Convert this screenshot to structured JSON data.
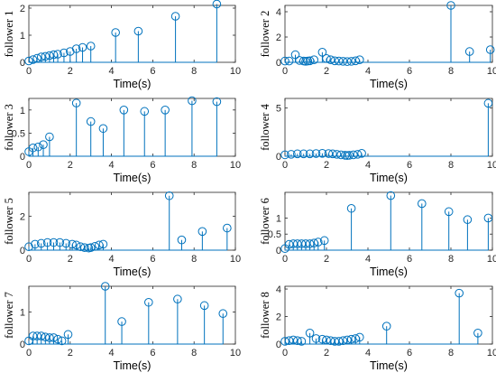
{
  "chart_data": [
    {
      "type": "stem",
      "ylabel": "follower 1",
      "xlabel": "Time(s)",
      "xlim": [
        0,
        10
      ],
      "xticks": [
        0,
        2,
        4,
        6,
        8,
        10
      ],
      "ylim": [
        0,
        2.1
      ],
      "yticks": [
        0,
        1,
        2
      ],
      "x": [
        0,
        0.2,
        0.4,
        0.6,
        0.8,
        1.0,
        1.2,
        1.4,
        1.7,
        2.0,
        2.3,
        2.6,
        3.0,
        4.2,
        5.3,
        7.1,
        9.1
      ],
      "y": [
        0.05,
        0.1,
        0.15,
        0.2,
        0.22,
        0.25,
        0.28,
        0.3,
        0.35,
        0.4,
        0.5,
        0.55,
        0.6,
        1.1,
        1.15,
        1.7,
        2.15
      ]
    },
    {
      "type": "stem",
      "ylabel": "follower 2",
      "xlabel": "Time(s)",
      "xlim": [
        0,
        10
      ],
      "xticks": [
        0,
        2,
        4,
        6,
        8,
        10
      ],
      "ylim": [
        0,
        4.5
      ],
      "yticks": [
        0,
        2,
        4
      ],
      "x": [
        0,
        0.2,
        0.5,
        0.7,
        0.9,
        1.0,
        1.1,
        1.2,
        1.4,
        1.8,
        2.0,
        2.2,
        2.4,
        2.6,
        2.8,
        3.0,
        3.2,
        3.4,
        3.6,
        8.0,
        8.9,
        9.9
      ],
      "y": [
        0.1,
        0.1,
        0.6,
        0.15,
        0.1,
        0.08,
        0.1,
        0.12,
        0.2,
        0.8,
        0.3,
        0.2,
        0.12,
        0.1,
        0.08,
        0.06,
        0.08,
        0.12,
        0.2,
        4.5,
        0.85,
        1.0
      ]
    },
    {
      "type": "stem",
      "ylabel": "follower 3",
      "xlabel": "Time(s)",
      "xlim": [
        0,
        10
      ],
      "xticks": [
        0,
        2,
        4,
        6,
        8,
        10
      ],
      "ylim": [
        0,
        1.25
      ],
      "yticks": [
        0,
        0.5,
        1
      ],
      "x": [
        0,
        0.2,
        0.45,
        0.7,
        1.0,
        2.3,
        3.0,
        3.6,
        4.6,
        5.6,
        6.6,
        7.9,
        9.1
      ],
      "y": [
        0.1,
        0.18,
        0.2,
        0.25,
        0.42,
        1.15,
        0.75,
        0.6,
        1.0,
        0.97,
        1.0,
        1.2,
        1.18
      ]
    },
    {
      "type": "stem",
      "ylabel": "follower 4",
      "xlabel": "Time(s)",
      "xlim": [
        0,
        10
      ],
      "xticks": [
        0,
        2,
        4,
        6,
        8,
        10
      ],
      "ylim": [
        0,
        6
      ],
      "yticks": [
        0,
        5
      ],
      "x": [
        0,
        0.3,
        0.6,
        0.9,
        1.2,
        1.5,
        1.8,
        2.1,
        2.3,
        2.5,
        2.7,
        2.9,
        3.0,
        3.1,
        3.3,
        3.5,
        3.7,
        9.8
      ],
      "y": [
        0.15,
        0.2,
        0.25,
        0.25,
        0.25,
        0.28,
        0.3,
        0.28,
        0.25,
        0.2,
        0.15,
        0.1,
        0.08,
        0.1,
        0.15,
        0.2,
        0.3,
        5.5
      ]
    },
    {
      "type": "stem",
      "ylabel": "follower 5",
      "xlabel": "Time(s)",
      "xlim": [
        0,
        10
      ],
      "xticks": [
        0,
        2,
        4,
        6,
        8,
        10
      ],
      "ylim": [
        0,
        3.4
      ],
      "yticks": [
        0,
        2
      ],
      "x": [
        0,
        0.3,
        0.6,
        0.9,
        1.2,
        1.5,
        1.8,
        2.1,
        2.3,
        2.5,
        2.7,
        2.9,
        3.0,
        3.2,
        3.4,
        3.6,
        6.8,
        7.4,
        8.4,
        9.6
      ],
      "y": [
        0.2,
        0.35,
        0.4,
        0.45,
        0.45,
        0.45,
        0.4,
        0.35,
        0.3,
        0.2,
        0.15,
        0.12,
        0.15,
        0.22,
        0.3,
        0.35,
        3.2,
        0.6,
        1.1,
        1.3
      ]
    },
    {
      "type": "stem",
      "ylabel": "follower 6",
      "xlabel": "Time(s)",
      "xlim": [
        0,
        10
      ],
      "xticks": [
        0,
        2,
        4,
        6,
        8,
        10
      ],
      "ylim": [
        0,
        1.8
      ],
      "yticks": [
        0,
        0.5,
        1
      ],
      "x": [
        0,
        0.2,
        0.4,
        0.6,
        0.8,
        1.0,
        1.2,
        1.4,
        1.6,
        1.9,
        3.2,
        5.1,
        6.6,
        7.9,
        8.8,
        9.8
      ],
      "y": [
        0.05,
        0.18,
        0.2,
        0.2,
        0.2,
        0.2,
        0.2,
        0.22,
        0.25,
        0.3,
        1.3,
        1.7,
        1.45,
        1.2,
        0.95,
        1.0
      ]
    },
    {
      "type": "stem",
      "ylabel": "follower 7",
      "xlabel": "Time(s)",
      "xlim": [
        0,
        10
      ],
      "xticks": [
        0,
        2,
        4,
        6,
        8,
        10
      ],
      "ylim": [
        0,
        1.8
      ],
      "yticks": [
        0,
        1
      ],
      "x": [
        0,
        0.2,
        0.4,
        0.6,
        0.8,
        1.0,
        1.2,
        1.4,
        1.6,
        1.9,
        3.7,
        4.5,
        5.8,
        7.2,
        8.5,
        9.4
      ],
      "y": [
        0.1,
        0.25,
        0.25,
        0.25,
        0.22,
        0.2,
        0.2,
        0.15,
        0.1,
        0.3,
        1.8,
        0.7,
        1.3,
        1.4,
        1.2,
        0.95
      ]
    },
    {
      "type": "stem",
      "ylabel": "follower 8",
      "xlabel": "Time(s)",
      "xlim": [
        0,
        10
      ],
      "xticks": [
        0,
        2,
        4,
        6,
        8,
        10
      ],
      "ylim": [
        0,
        4.2
      ],
      "yticks": [
        0,
        2,
        4
      ],
      "x": [
        0,
        0.2,
        0.4,
        0.6,
        0.8,
        1.2,
        1.5,
        1.8,
        2.0,
        2.2,
        2.4,
        2.6,
        2.8,
        3.0,
        3.2,
        3.4,
        3.6,
        4.9,
        8.4,
        9.3
      ],
      "y": [
        0.2,
        0.25,
        0.3,
        0.25,
        0.2,
        0.8,
        0.4,
        0.35,
        0.3,
        0.25,
        0.2,
        0.2,
        0.25,
        0.3,
        0.35,
        0.4,
        0.5,
        1.3,
        3.7,
        0.8
      ]
    }
  ]
}
